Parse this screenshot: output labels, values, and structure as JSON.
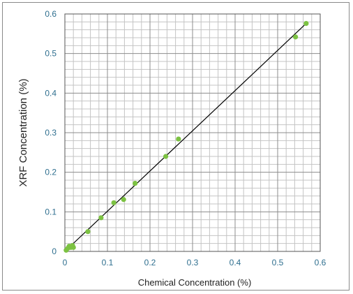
{
  "chart_data": {
    "type": "scatter",
    "title": "",
    "xlabel": "Chemical Concentration (%)",
    "ylabel": "XRF Concentration (%)",
    "xlim": [
      0,
      0.6
    ],
    "ylim": [
      0,
      0.6
    ],
    "x_ticks": [
      "0",
      "0.1",
      "0.2",
      "0.3",
      "0.4",
      "0.5",
      "0.6"
    ],
    "y_ticks": [
      "0",
      "0.1",
      "0.2",
      "0.3",
      "0.4",
      "0.5",
      "0.6"
    ],
    "grid": true,
    "marker_color": "#7cc242",
    "line_color": "#000000",
    "points": [
      {
        "x": 0.003,
        "y": 0.003
      },
      {
        "x": 0.007,
        "y": 0.008
      },
      {
        "x": 0.01,
        "y": 0.013
      },
      {
        "x": 0.014,
        "y": 0.01
      },
      {
        "x": 0.018,
        "y": 0.015
      },
      {
        "x": 0.02,
        "y": 0.01
      },
      {
        "x": 0.054,
        "y": 0.05
      },
      {
        "x": 0.085,
        "y": 0.085
      },
      {
        "x": 0.115,
        "y": 0.123
      },
      {
        "x": 0.138,
        "y": 0.131
      },
      {
        "x": 0.165,
        "y": 0.172
      },
      {
        "x": 0.237,
        "y": 0.24
      },
      {
        "x": 0.267,
        "y": 0.284
      },
      {
        "x": 0.542,
        "y": 0.542
      },
      {
        "x": 0.567,
        "y": 0.576
      }
    ],
    "fit_line": {
      "x": [
        0,
        0.567
      ],
      "y": [
        0,
        0.576
      ]
    }
  }
}
